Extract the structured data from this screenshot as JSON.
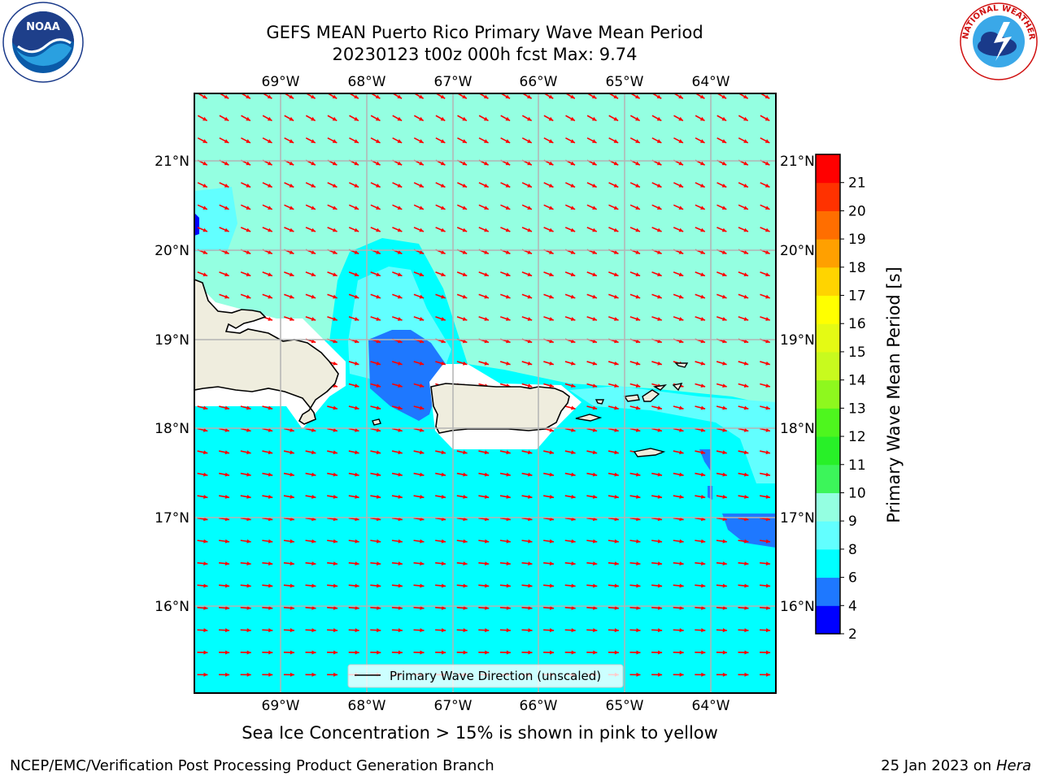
{
  "title_line1": "GEFS MEAN Puerto Rico Primary Wave Mean Period",
  "title_line2": "20230123 t00z 000h fcst   Max: 9.74",
  "subtitle": "Sea Ice Concentration > 15% is shown in pink to yellow",
  "footer_left": "NCEP/EMC/Verification Post Processing Product Generation Branch",
  "footer_date": "25 Jan 2023 on ",
  "footer_host": "Hera",
  "legend_label": "Primary Wave Direction (unscaled)",
  "colorbar": {
    "label": "Primary Wave Mean Period [s]",
    "levels": [
      2,
      4,
      6,
      8,
      9,
      10,
      11,
      12,
      13,
      14,
      15,
      16,
      17,
      18,
      19,
      20,
      21
    ],
    "colors": [
      "#0000ff",
      "#1e78ff",
      "#00ffff",
      "#62ffff",
      "#94ffe1",
      "#3cf55a",
      "#28f028",
      "#4ef61e",
      "#8ef81e",
      "#c8fa1e",
      "#e4fa14",
      "#ffff00",
      "#ffd400",
      "#ffa000",
      "#ff6e00",
      "#ff3200",
      "#ff0000"
    ]
  },
  "lon_ticks": [
    "69°W",
    "68°W",
    "67°W",
    "66°W",
    "65°W",
    "64°W"
  ],
  "lat_ticks": [
    "21°N",
    "20°N",
    "19°N",
    "18°N",
    "17°N",
    "16°N"
  ],
  "arrow_color": "#ff0000",
  "land_color": "#efedde",
  "logos": {
    "noaa_text": "NOAA",
    "nws_text": "NATIONAL WEATHER SERVICE"
  }
}
